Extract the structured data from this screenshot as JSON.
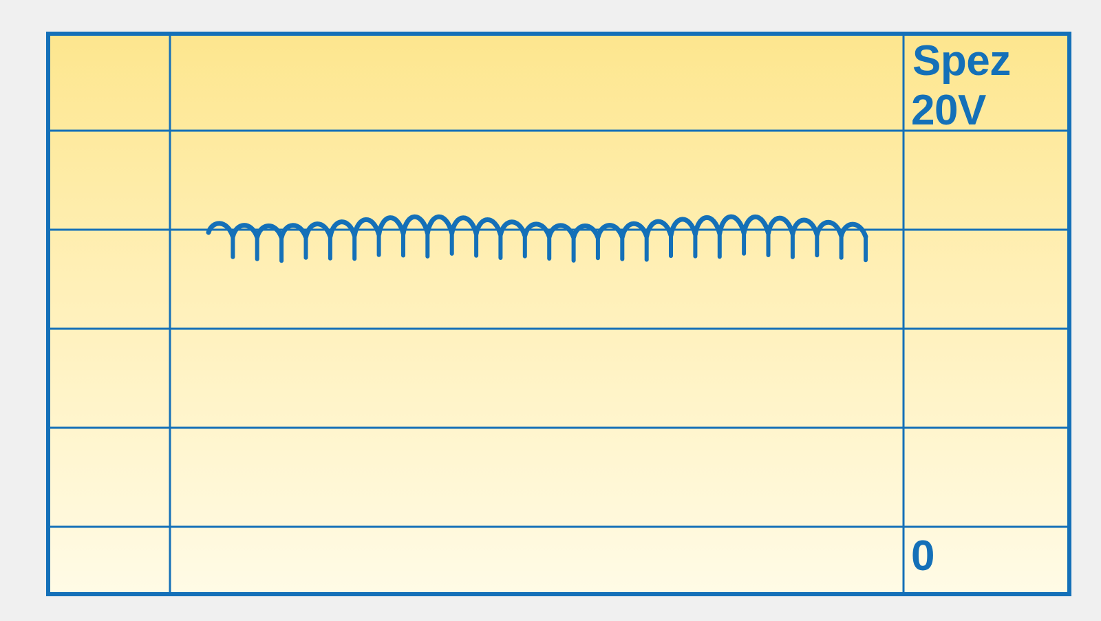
{
  "scope": {
    "spec_line1": "Spez",
    "spec_line2": "20V",
    "zero_label": "0"
  },
  "colors": {
    "ink": "#1470b8",
    "panel_top": "#fde68e",
    "panel_bottom": "#fffbe6",
    "page_bg": "#f0f0f0"
  }
}
